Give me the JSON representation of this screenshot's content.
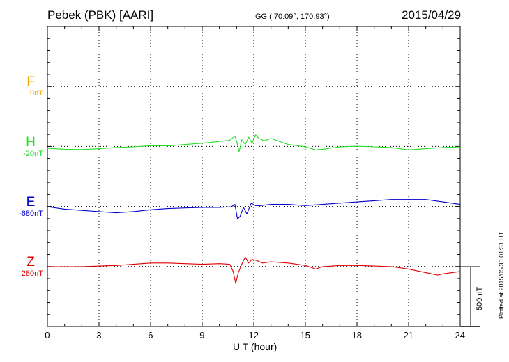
{
  "header": {
    "title": "Pebek (PBK)  [AARI]",
    "coords": "GG ( 70.09°, 170.93°)",
    "date": "2015/04/29"
  },
  "footer": {
    "xlabel": "U T (hour)",
    "plotted": "Plotted at 2015/05/30 01:31  UT"
  },
  "scale_bar": {
    "label": "500 nT",
    "value_nT": 500
  },
  "chart_data": {
    "type": "line",
    "xlabel": "U T (hour)",
    "xlim": [
      0,
      24
    ],
    "xticks": [
      0,
      3,
      6,
      9,
      12,
      15,
      18,
      21,
      24
    ],
    "grid": true,
    "units_per_band_nT": 500,
    "series": [
      {
        "name": "F",
        "baseline": "0nT",
        "color": "#f5a700",
        "x": [],
        "y": []
      },
      {
        "name": "H",
        "baseline": "-20nT",
        "color": "#22e022",
        "x": [
          0,
          1,
          2,
          3,
          4,
          5,
          6,
          7,
          8,
          9,
          10,
          10.6,
          10.9,
          11.0,
          11.15,
          11.3,
          11.5,
          11.7,
          11.9,
          12.1,
          12.3,
          12.6,
          13,
          14,
          15,
          15.6,
          16,
          17,
          18,
          19,
          20,
          21,
          22,
          23,
          24
        ],
        "y": [
          -12,
          -20,
          -22,
          -15,
          -5,
          0,
          10,
          8,
          20,
          30,
          45,
          55,
          90,
          50,
          -40,
          60,
          20,
          80,
          30,
          100,
          70,
          50,
          70,
          20,
          0,
          -25,
          -20,
          0,
          5,
          0,
          -5,
          -25,
          -15,
          -5,
          0
        ]
      },
      {
        "name": "E",
        "baseline": "-680nT",
        "color": "#0000cc",
        "x": [
          0,
          1,
          2,
          3,
          4,
          5,
          6,
          7,
          8,
          9,
          10,
          10.7,
          10.9,
          11.05,
          11.2,
          11.4,
          11.6,
          11.85,
          12.1,
          12.4,
          13,
          14,
          15,
          16,
          17,
          18,
          19,
          20,
          21,
          22,
          23,
          24
        ],
        "y": [
          0,
          -20,
          -30,
          -40,
          -50,
          -40,
          -25,
          -15,
          -10,
          -5,
          -5,
          0,
          20,
          -100,
          -80,
          -5,
          -60,
          30,
          10,
          10,
          20,
          20,
          10,
          20,
          30,
          40,
          50,
          60,
          60,
          60,
          40,
          20
        ]
      },
      {
        "name": "Z",
        "baseline": "280nT",
        "color": "#dd0000",
        "x": [
          0,
          1,
          2,
          3,
          4,
          5,
          6,
          7,
          8,
          9,
          10,
          10.6,
          10.8,
          10.95,
          11.1,
          11.3,
          11.5,
          11.7,
          11.9,
          12.2,
          12.5,
          13,
          14,
          15,
          15.6,
          16,
          17,
          18,
          19,
          20,
          21,
          22,
          22.7,
          23,
          24
        ],
        "y": [
          0,
          0,
          0,
          5,
          10,
          20,
          30,
          30,
          25,
          20,
          25,
          20,
          -40,
          -140,
          -50,
          20,
          80,
          30,
          60,
          50,
          30,
          40,
          30,
          10,
          -20,
          0,
          10,
          10,
          5,
          0,
          -20,
          -50,
          -70,
          -60,
          -40
        ]
      }
    ]
  }
}
